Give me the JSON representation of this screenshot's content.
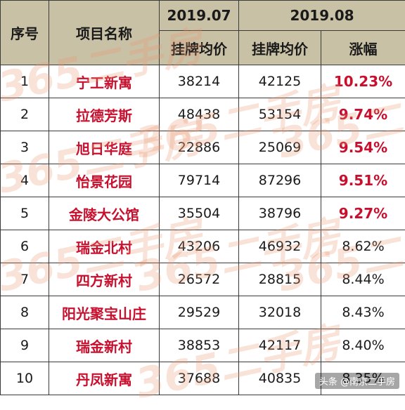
{
  "header": {
    "col_index": "序号",
    "col_name": "项目名称",
    "period1": "2019.07",
    "period2": "2019.08",
    "period1_price": "挂牌均价",
    "period2_price": "挂牌均价",
    "change": "涨幅"
  },
  "rows": [
    {
      "idx": "1",
      "name": "宁工新寓",
      "p1": "38214",
      "p2": "42125",
      "change": "10.23%",
      "highlight": true
    },
    {
      "idx": "2",
      "name": "拉德芳斯",
      "p1": "48438",
      "p2": "53154",
      "change": "9.74%",
      "highlight": true
    },
    {
      "idx": "3",
      "name": "旭日华庭",
      "p1": "22886",
      "p2": "25069",
      "change": "9.54%",
      "highlight": true
    },
    {
      "idx": "4",
      "name": "怡景花园",
      "p1": "79714",
      "p2": "87296",
      "change": "9.51%",
      "highlight": true
    },
    {
      "idx": "5",
      "name": "金陵大公馆",
      "p1": "35504",
      "p2": "38796",
      "change": "9.27%",
      "highlight": true
    },
    {
      "idx": "6",
      "name": "瑞金北村",
      "p1": "43206",
      "p2": "46932",
      "change": "8.62%",
      "highlight": false
    },
    {
      "idx": "7",
      "name": "四方新村",
      "p1": "26572",
      "p2": "28815",
      "change": "8.44%",
      "highlight": false
    },
    {
      "idx": "8",
      "name": "阳光聚宝山庄",
      "p1": "29529",
      "p2": "32018",
      "change": "8.43%",
      "highlight": false
    },
    {
      "idx": "9",
      "name": "瑞金新村",
      "p1": "38853",
      "p2": "42117",
      "change": "8.40%",
      "highlight": false
    },
    {
      "idx": "10",
      "name": "丹凤新寓",
      "p1": "37688",
      "p2": "40835",
      "change": "8.35%",
      "highlight": false
    }
  ],
  "watermark": {
    "number": "365",
    "text": "二手房"
  },
  "brand_tag": "头条 @南京二手房",
  "colors": {
    "header_bg": "#c9c1a6",
    "accent_red": "#c8102e",
    "border": "#3a3a3a"
  }
}
